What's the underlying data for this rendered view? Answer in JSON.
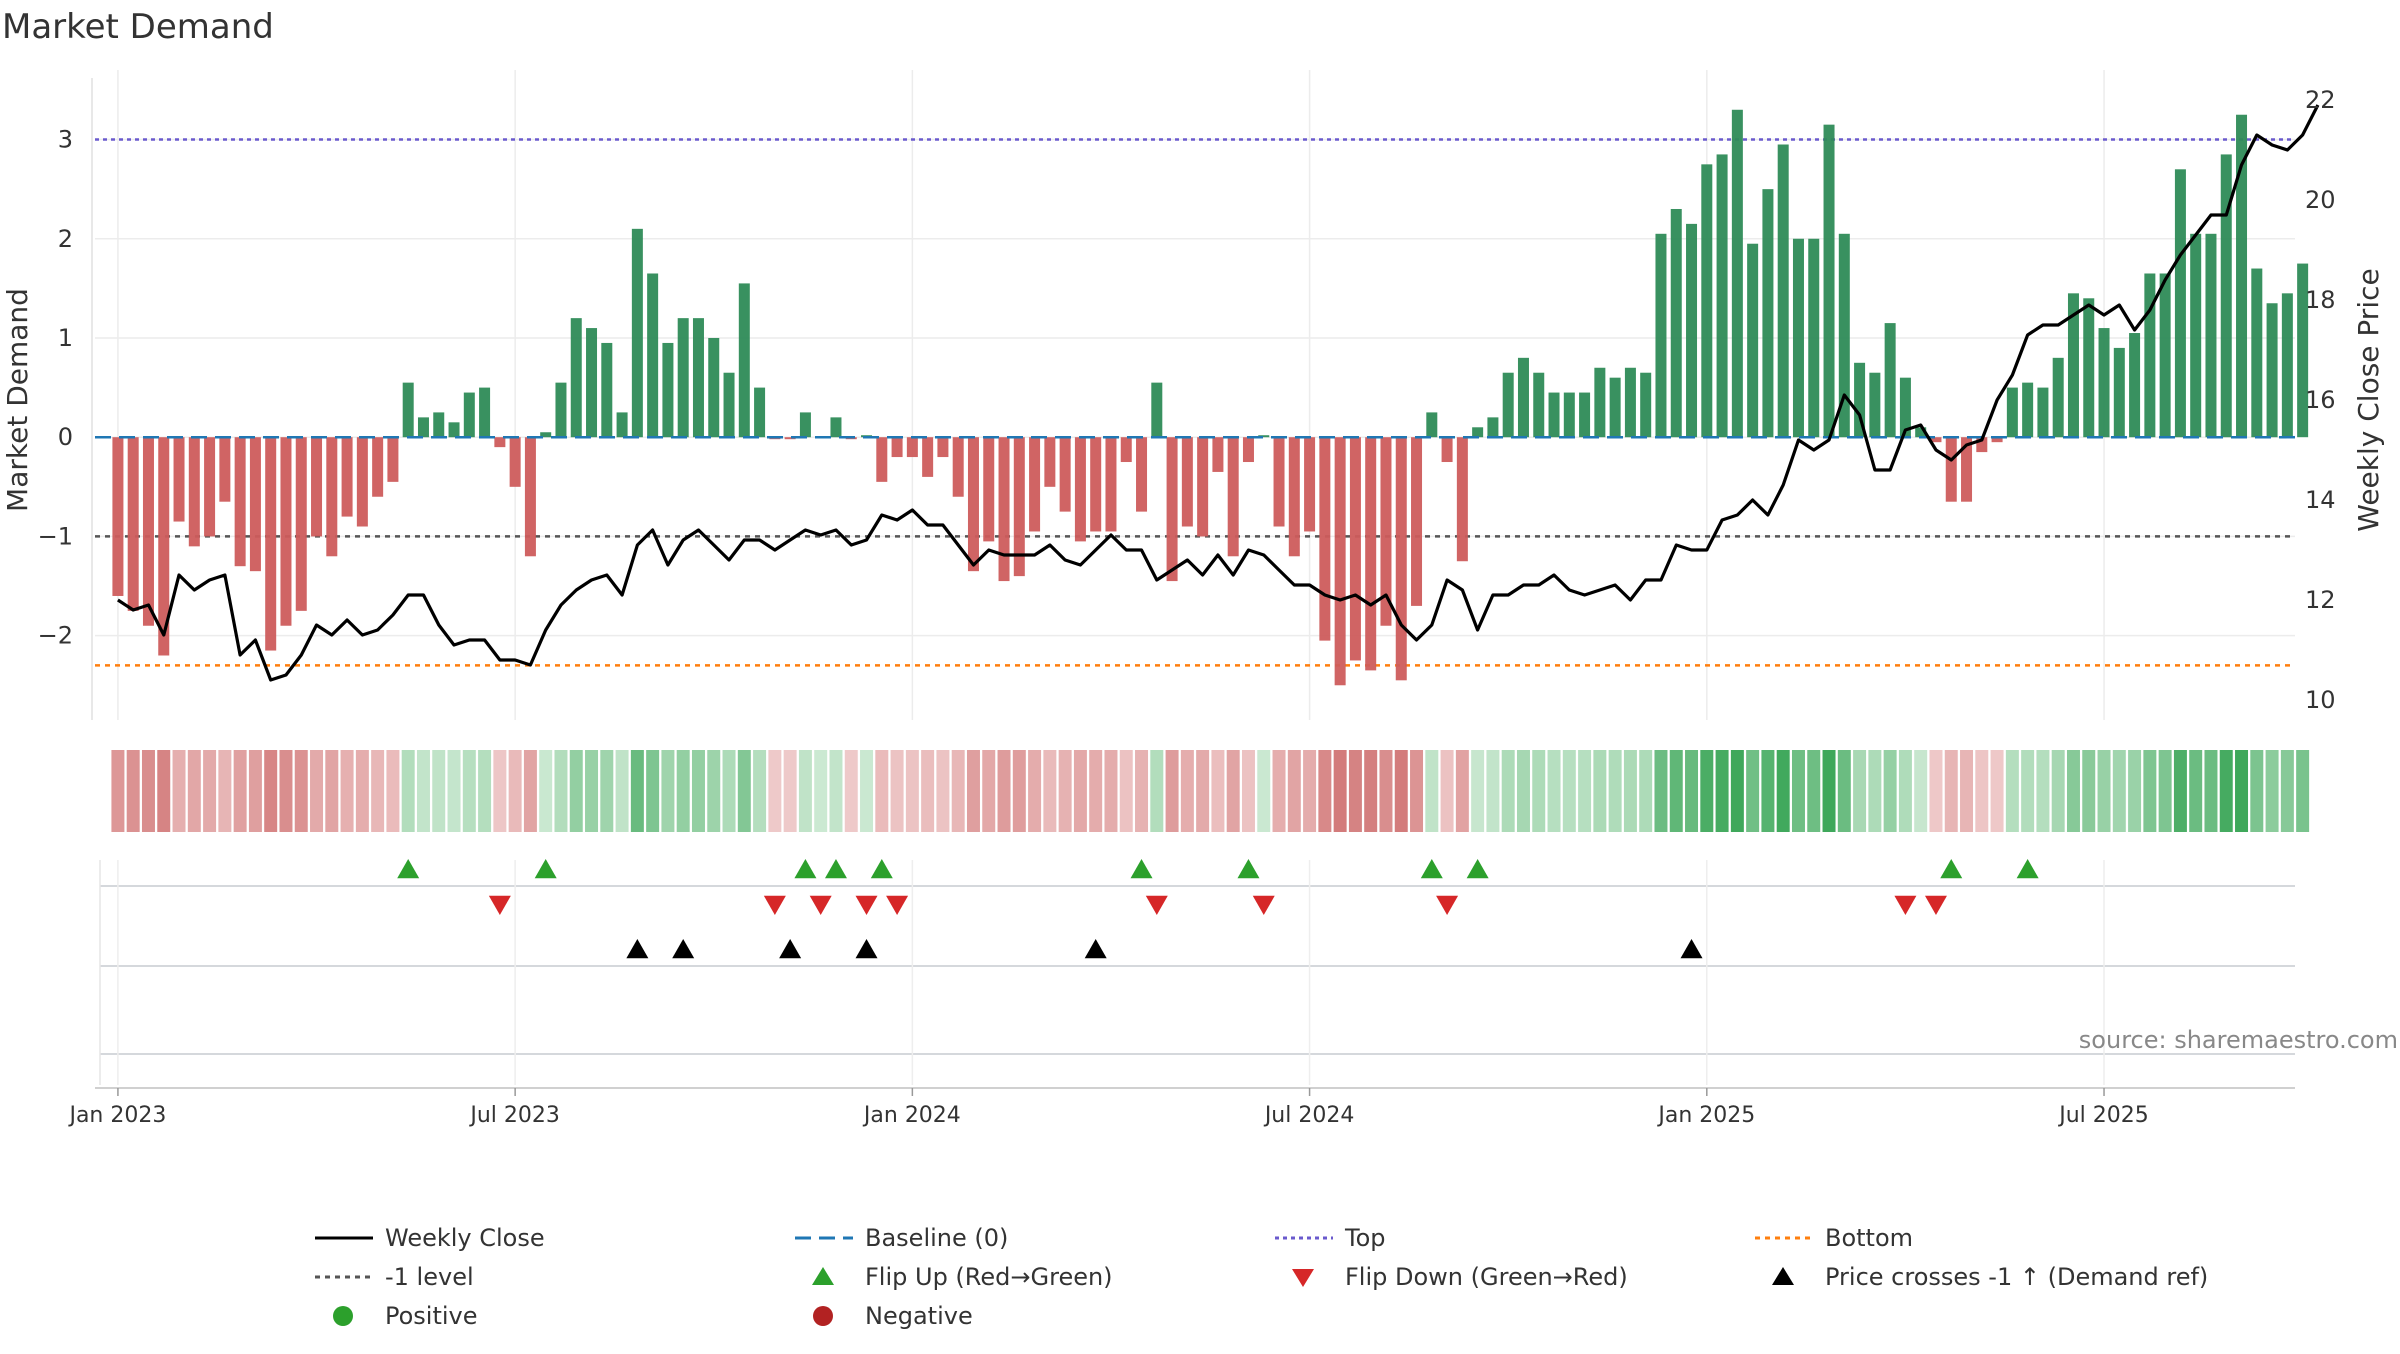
{
  "chart_data": {
    "type": "bar",
    "title": "Market Demand",
    "ylabel": "Market Demand",
    "y2label": "Weekly Close Price",
    "ylim": [
      -2.85,
      3.6
    ],
    "y2lim": [
      9.6,
      22.4
    ],
    "yticks": [
      -2,
      -1,
      0,
      1,
      2,
      3
    ],
    "y2ticks": [
      10,
      12,
      14,
      16,
      18,
      20,
      22
    ],
    "xlim": [
      -1.5,
      142.5
    ],
    "x_ticks": [
      {
        "label": "Jan 2023",
        "week": 0
      },
      {
        "label": "Jul 2023",
        "week": 26
      },
      {
        "label": "Jan 2024",
        "week": 52
      },
      {
        "label": "Jul 2024",
        "week": 78
      },
      {
        "label": "Jan 2025",
        "week": 104
      },
      {
        "label": "Jul 2025",
        "week": 130
      }
    ],
    "top_level": 3.0,
    "bottom_level": -2.3,
    "minus_one_level": -1.0,
    "demand_weekly": [
      -1.6,
      -1.75,
      -1.9,
      -2.2,
      -0.85,
      -1.1,
      -1.0,
      -0.65,
      -1.3,
      -1.35,
      -2.15,
      -1.9,
      -1.75,
      -1.0,
      -1.2,
      -0.8,
      -0.9,
      -0.6,
      -0.45,
      0.55,
      0.2,
      0.25,
      0.15,
      0.45,
      0.5,
      -0.1,
      -0.5,
      -1.2,
      0.05,
      0.55,
      1.2,
      1.1,
      0.95,
      0.25,
      2.1,
      1.65,
      0.95,
      1.2,
      1.2,
      1.0,
      0.65,
      1.55,
      0.5,
      -0.02,
      -0.02,
      0.25,
      0.0,
      0.2,
      -0.02,
      0.02,
      -0.45,
      -0.2,
      -0.2,
      -0.4,
      -0.2,
      -0.6,
      -1.35,
      -1.05,
      -1.45,
      -1.4,
      -0.95,
      -0.5,
      -0.75,
      -1.05,
      -0.95,
      -0.95,
      -0.25,
      -0.75,
      0.55,
      -1.45,
      -0.9,
      -1.0,
      -0.35,
      -1.2,
      -0.25,
      0.02,
      -0.9,
      -1.2,
      -0.95,
      -2.05,
      -2.5,
      -2.25,
      -2.35,
      -1.9,
      -2.45,
      -1.7,
      0.25,
      -0.25,
      -1.25,
      0.1,
      0.2,
      0.65,
      0.8,
      0.65,
      0.45,
      0.45,
      0.45,
      0.7,
      0.6,
      0.7,
      0.65,
      2.05,
      2.3,
      2.15,
      2.75,
      2.85,
      3.3,
      1.95,
      2.5,
      2.95,
      2.0,
      2.0,
      3.15,
      2.05,
      0.75,
      0.65,
      1.15,
      0.6,
      0.1,
      -0.05,
      -0.65,
      -0.65,
      -0.15,
      -0.05,
      0.5,
      0.55,
      0.5,
      0.8,
      1.45,
      1.4,
      1.1,
      0.9,
      1.05,
      1.65,
      1.65,
      2.7,
      2.05,
      2.05,
      2.85,
      3.25,
      1.7,
      1.35,
      1.45,
      1.75
    ],
    "price_weekly": [
      12.0,
      11.8,
      11.9,
      11.3,
      12.5,
      12.2,
      12.4,
      12.5,
      10.9,
      11.2,
      10.4,
      10.5,
      10.9,
      11.5,
      11.3,
      11.6,
      11.3,
      11.4,
      11.7,
      12.1,
      12.1,
      11.5,
      11.1,
      11.2,
      11.2,
      10.8,
      10.8,
      10.7,
      11.4,
      11.9,
      12.2,
      12.4,
      12.5,
      12.1,
      13.1,
      13.4,
      12.7,
      13.2,
      13.4,
      13.1,
      12.8,
      13.2,
      13.2,
      13.0,
      13.2,
      13.4,
      13.3,
      13.4,
      13.1,
      13.2,
      13.7,
      13.6,
      13.8,
      13.5,
      13.5,
      13.1,
      12.7,
      13.0,
      12.9,
      12.9,
      12.9,
      13.1,
      12.8,
      12.7,
      13.0,
      13.3,
      13.0,
      13.0,
      12.4,
      12.6,
      12.8,
      12.5,
      12.9,
      12.5,
      13.0,
      12.9,
      12.6,
      12.3,
      12.3,
      12.1,
      12.0,
      12.1,
      11.9,
      12.1,
      11.5,
      11.2,
      11.5,
      12.4,
      12.2,
      11.4,
      12.1,
      12.1,
      12.3,
      12.3,
      12.5,
      12.2,
      12.1,
      12.2,
      12.3,
      12.0,
      12.4,
      12.4,
      13.1,
      13.0,
      13.0,
      13.6,
      13.7,
      14.0,
      13.7,
      14.3,
      15.2,
      15.0,
      15.2,
      16.1,
      15.7,
      14.6,
      14.6,
      15.4,
      15.5,
      15.0,
      14.8,
      15.1,
      15.2,
      16.0,
      16.5,
      17.3,
      17.5,
      17.5,
      17.7,
      17.9,
      17.7,
      17.9,
      17.4,
      17.8,
      18.4,
      18.9,
      19.3,
      19.7,
      19.7,
      20.7,
      21.3,
      21.1,
      21.0,
      21.3,
      21.9
    ],
    "flip_up_weeks": [
      19,
      28,
      45,
      47,
      50,
      67,
      74,
      86,
      89,
      120,
      125
    ],
    "flip_down_weeks": [
      25,
      43,
      46,
      49,
      51,
      68,
      75,
      87,
      117,
      119
    ],
    "price_cross_weeks": [
      34,
      37,
      44,
      49,
      64,
      103
    ],
    "source_text": "source: sharemaestro.com",
    "legend": [
      {
        "key": "weekly_close",
        "label": "Weekly Close"
      },
      {
        "key": "baseline",
        "label": "Baseline (0)"
      },
      {
        "key": "top",
        "label": "Top"
      },
      {
        "key": "bottom",
        "label": "Bottom"
      },
      {
        "key": "minus_one",
        "label": "-1 level"
      },
      {
        "key": "flip_up",
        "label": "Flip Up (Red→Green)"
      },
      {
        "key": "flip_down",
        "label": "Flip Down (Green→Red)"
      },
      {
        "key": "price_cross",
        "label": "Price crosses -1 ↑ (Demand ref)"
      },
      {
        "key": "positive",
        "label": "Positive"
      },
      {
        "key": "negative",
        "label": "Negative"
      }
    ],
    "colors": {
      "positive_bar": "#2e8b57",
      "negative_bar": "#cd5c5c",
      "price_line": "#000000",
      "baseline": "#1f77b4",
      "top": "#6a5acd",
      "bottom": "#ff7f0e",
      "minus_one": "#555555",
      "flip_up": "#2ca02c",
      "flip_down": "#d62728",
      "price_cross": "#000000",
      "positive_dot": "#2ca02c",
      "negative_dot": "#b22222",
      "grid": "#ececec",
      "text": "#333333"
    }
  }
}
